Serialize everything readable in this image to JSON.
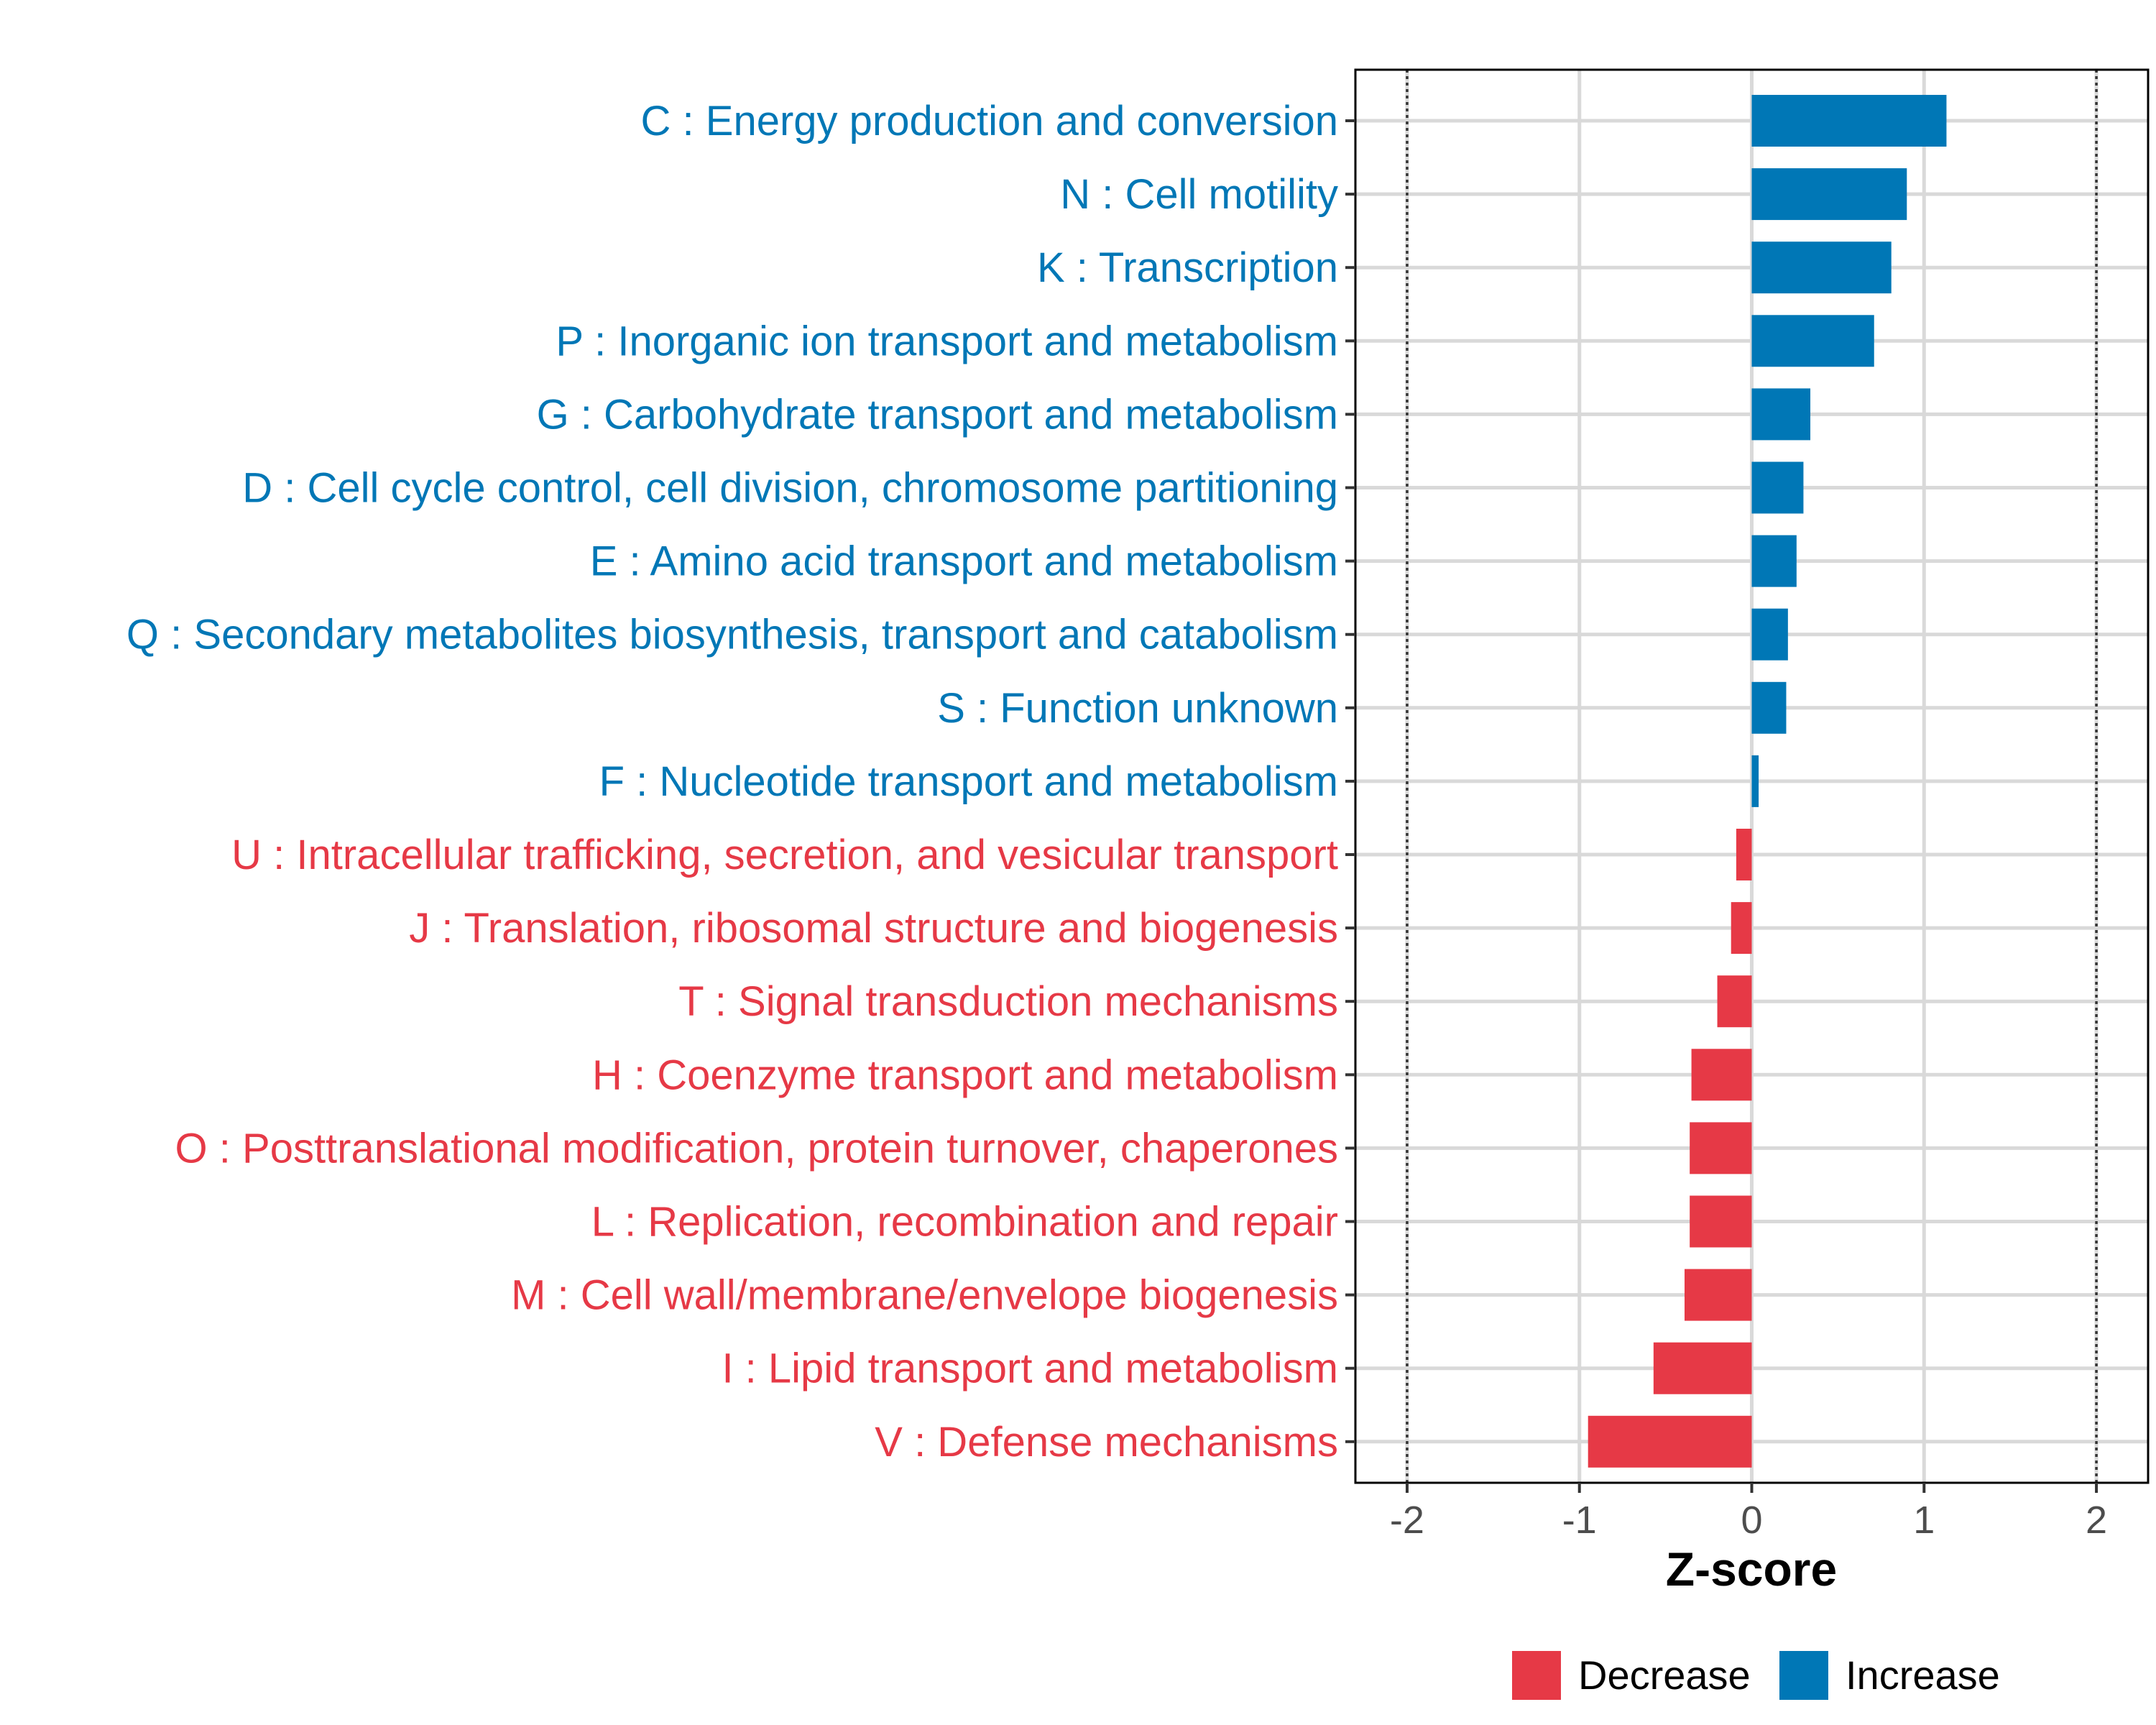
{
  "chart_data": {
    "type": "bar",
    "orientation": "horizontal",
    "xlabel": "Z-score",
    "xlim": [
      -2.3,
      2.3
    ],
    "xticks": [
      -2,
      -1,
      0,
      1,
      2
    ],
    "xtick_labels": [
      "-2",
      "-1",
      "0",
      "1",
      "2"
    ],
    "reference_lines": [
      -2,
      2
    ],
    "grid": true,
    "legend_position": "bottom",
    "legend": [
      {
        "name": "Decrease",
        "color": "#e63946"
      },
      {
        "name": "Increase",
        "color": "#0077b6"
      }
    ],
    "categories": [
      "C : Energy production and conversion",
      "N : Cell motility",
      "K : Transcription",
      "P : Inorganic ion transport and metabolism",
      "G : Carbohydrate transport and metabolism",
      "D : Cell cycle control, cell division, chromosome partitioning",
      "E : Amino acid transport and metabolism",
      "Q : Secondary metabolites biosynthesis, transport and catabolism",
      "S : Function unknown",
      "F : Nucleotide transport and metabolism",
      "U : Intracellular trafficking, secretion, and vesicular transport",
      "J : Translation, ribosomal structure and biogenesis",
      "T : Signal transduction mechanisms",
      "H : Coenzyme transport and metabolism",
      "O : Posttranslational modification, protein turnover, chaperones",
      "L : Replication, recombination and repair",
      "M : Cell wall/membrane/envelope biogenesis",
      "I : Lipid transport and metabolism",
      "V : Defense mechanisms"
    ],
    "values": [
      1.13,
      0.9,
      0.81,
      0.71,
      0.34,
      0.3,
      0.26,
      0.21,
      0.2,
      0.04,
      -0.09,
      -0.12,
      -0.2,
      -0.35,
      -0.36,
      -0.36,
      -0.39,
      -0.57,
      -0.95
    ],
    "groups": [
      "Increase",
      "Increase",
      "Increase",
      "Increase",
      "Increase",
      "Increase",
      "Increase",
      "Increase",
      "Increase",
      "Increase",
      "Decrease",
      "Decrease",
      "Decrease",
      "Decrease",
      "Decrease",
      "Decrease",
      "Decrease",
      "Decrease",
      "Decrease"
    ]
  }
}
